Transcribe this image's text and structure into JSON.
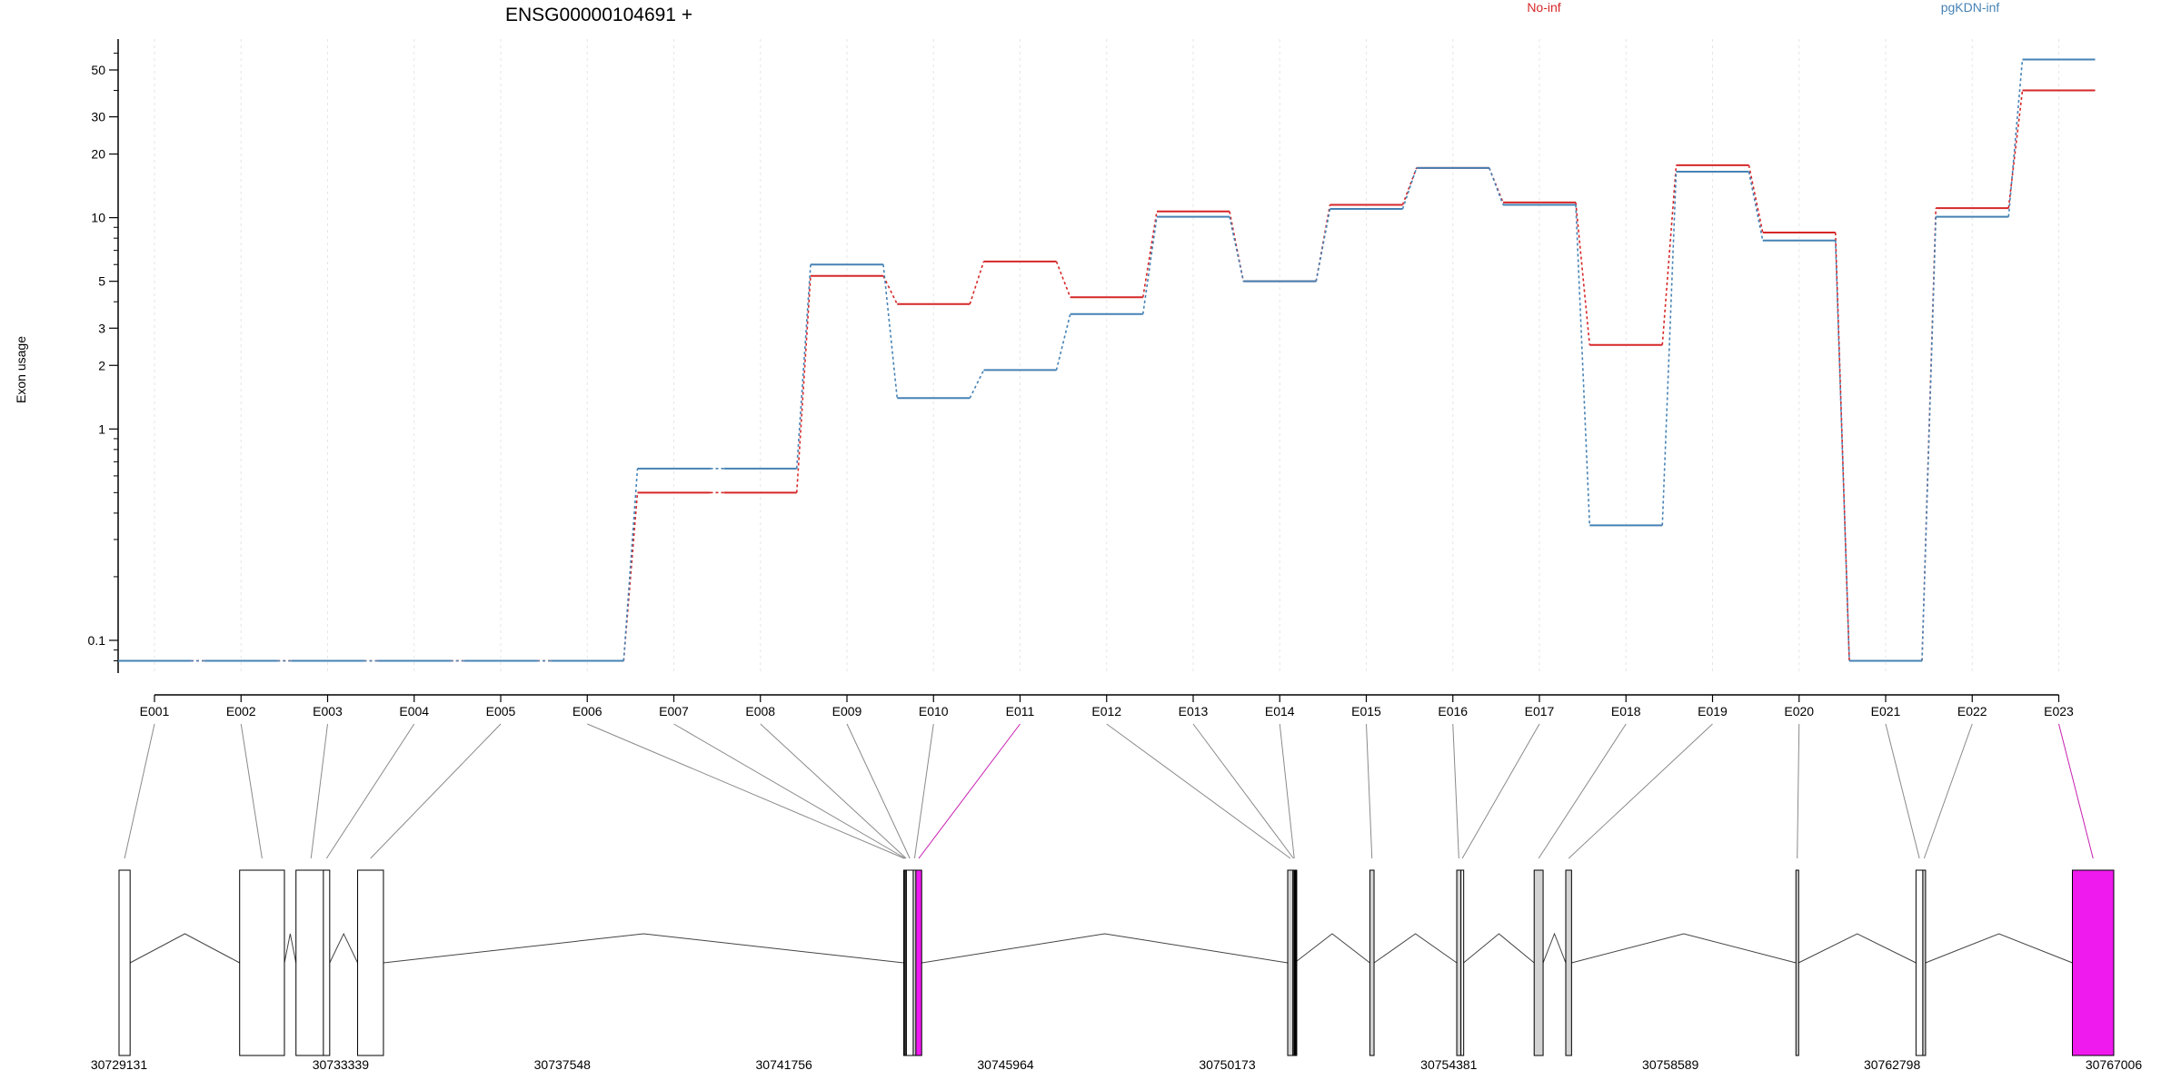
{
  "chart_data": {
    "type": "line",
    "title": "ENSG00000104691 +",
    "xlabel": "",
    "ylabel": "Exon usage",
    "y_scale": "log",
    "ylim": [
      0.07,
      70
    ],
    "y_ticks": [
      {
        "value": 0.1,
        "label": "0.1"
      },
      {
        "value": 1,
        "label": "1"
      },
      {
        "value": 2,
        "label": "2"
      },
      {
        "value": 3,
        "label": "3"
      },
      {
        "value": 5,
        "label": "5"
      },
      {
        "value": 10,
        "label": "10"
      },
      {
        "value": 20,
        "label": "20"
      },
      {
        "value": 30,
        "label": "30"
      },
      {
        "value": 50,
        "label": "50"
      }
    ],
    "grid": "vertical dotted",
    "legend_position": "top",
    "categories": [
      "E001",
      "E002",
      "E003",
      "E004",
      "E005",
      "E006",
      "E007",
      "E008",
      "E009",
      "E010",
      "E011",
      "E012",
      "E013",
      "E014",
      "E015",
      "E016",
      "E017",
      "E018",
      "E019",
      "E020",
      "E021",
      "E022",
      "E023"
    ],
    "series": [
      {
        "name": "No-inf",
        "color": "#d62728",
        "values": [
          0.08,
          0.08,
          0.08,
          0.08,
          0.08,
          0.08,
          0.5,
          0.5,
          5.3,
          3.9,
          6.2,
          4.2,
          10.7,
          5.0,
          11.5,
          17.2,
          11.8,
          2.5,
          17.7,
          8.5,
          0.08,
          11.1,
          40
        ]
      },
      {
        "name": "pgKDN-inf",
        "color": "#4682b4",
        "values": [
          0.08,
          0.08,
          0.08,
          0.08,
          0.08,
          0.08,
          0.65,
          0.65,
          6.0,
          1.4,
          1.9,
          3.5,
          10.1,
          5.0,
          11.0,
          17.2,
          11.5,
          0.35,
          16.5,
          7.8,
          0.08,
          10.1,
          56
        ]
      }
    ],
    "gene_model": {
      "coordinate_ticks": [
        "30729131",
        "30733339",
        "30737548",
        "30741756",
        "30745964",
        "30750173",
        "30754381",
        "30758589",
        "30762798",
        "30767006"
      ],
      "coord_start": 30729131,
      "coord_end": 30767006,
      "exons": [
        {
          "id": "E001",
          "start": 30729131,
          "end": 30729341,
          "fill": "#ffffff",
          "tested": true
        },
        {
          "id": "E002",
          "start": 30731421,
          "end": 30732271,
          "fill": "#ffffff",
          "tested": true
        },
        {
          "id": "E003",
          "start": 30732491,
          "end": 30733061,
          "fill": "#ffffff",
          "tested": true
        },
        {
          "id": "E004",
          "start": 30733011,
          "end": 30733131,
          "fill": "#ffffff",
          "tested": true
        },
        {
          "id": "E005",
          "start": 30733661,
          "end": 30734151,
          "fill": "#ffffff",
          "tested": true
        },
        {
          "id": "E006",
          "start": 30744031,
          "end": 30744051,
          "fill": "#ffffff",
          "tested": true
        },
        {
          "id": "E007",
          "start": 30744051,
          "end": 30744071,
          "fill": "#d3d3d3",
          "tested": true
        },
        {
          "id": "E008",
          "start": 30744071,
          "end": 30744081,
          "fill": "#000000",
          "tested": true
        },
        {
          "id": "E009",
          "start": 30744081,
          "end": 30744211,
          "fill": "#ffffff",
          "tested": true
        },
        {
          "id": "E010",
          "start": 30744211,
          "end": 30744261,
          "fill": "#d3d3d3",
          "tested": true
        },
        {
          "id": "E011",
          "start": 30744261,
          "end": 30744371,
          "fill": "#ee1aee",
          "tested": true
        },
        {
          "id": "E012",
          "start": 30751321,
          "end": 30751421,
          "fill": "#d3d3d3",
          "tested": true
        },
        {
          "id": "E013",
          "start": 30751421,
          "end": 30751441,
          "fill": "#ffffff",
          "tested": true
        },
        {
          "id": "E014",
          "start": 30751441,
          "end": 30751451,
          "fill": "#000000",
          "tested": true
        },
        {
          "id": "E015",
          "start": 30752881,
          "end": 30752961,
          "fill": "#d3d3d3",
          "tested": true
        },
        {
          "id": "E016",
          "start": 30754531,
          "end": 30754611,
          "fill": "#d3d3d3",
          "tested": true
        },
        {
          "id": "E017",
          "start": 30754611,
          "end": 30754661,
          "fill": "#ffffff",
          "tested": true
        },
        {
          "id": "E018",
          "start": 30756001,
          "end": 30756171,
          "fill": "#d3d3d3",
          "tested": true
        },
        {
          "id": "E019",
          "start": 30756601,
          "end": 30756711,
          "fill": "#d3d3d3",
          "tested": true
        },
        {
          "id": "E020",
          "start": 30760971,
          "end": 30761021,
          "fill": "#d3d3d3",
          "tested": true
        },
        {
          "id": "E021",
          "start": 30763251,
          "end": 30763381,
          "fill": "#ffffff",
          "tested": true
        },
        {
          "id": "E022",
          "start": 30763381,
          "end": 30763431,
          "fill": "#d3d3d3",
          "tested": true
        },
        {
          "id": "E023",
          "start": 30766221,
          "end": 30767006,
          "fill": "#ee1aee",
          "tested": true
        }
      ]
    }
  }
}
